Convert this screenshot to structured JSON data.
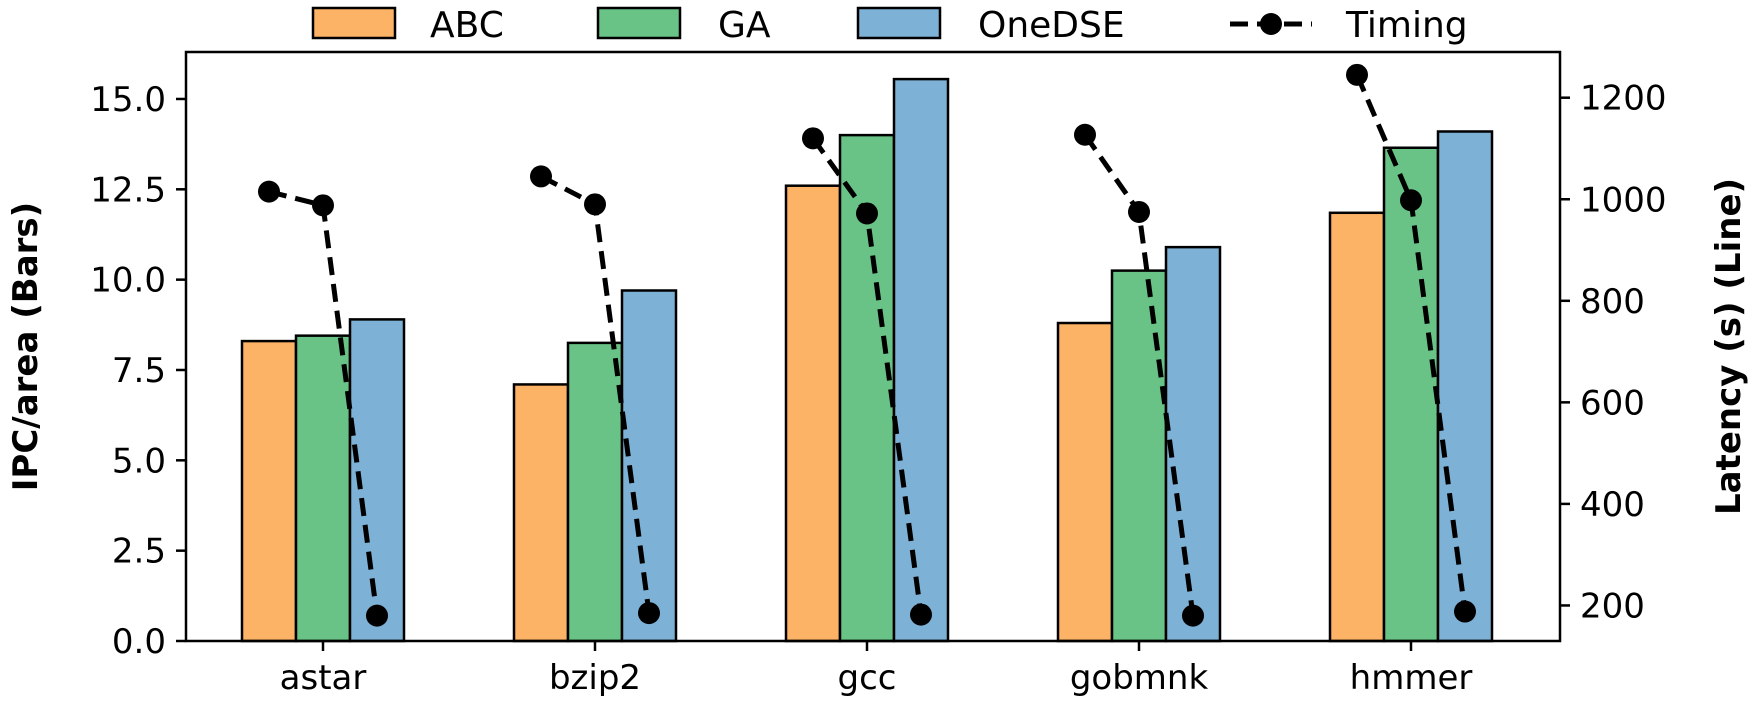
{
  "chart_data": {
    "type": "bar",
    "categories": [
      "astar",
      "bzip2",
      "gcc",
      "gobmnk",
      "hmmer"
    ],
    "series": [
      {
        "name": "ABC",
        "values": [
          8.3,
          7.1,
          12.6,
          8.8,
          11.85
        ],
        "color": "#FDB366"
      },
      {
        "name": "GA",
        "values": [
          8.45,
          8.25,
          14.0,
          10.25,
          13.65
        ],
        "color": "#69C386"
      },
      {
        "name": "OneDSE",
        "values": [
          8.9,
          9.7,
          15.55,
          10.9,
          14.1
        ],
        "color": "#7EB1D6"
      }
    ],
    "line_series": {
      "name": "Timing",
      "axis": "right",
      "color": "#000000",
      "values": [
        [
          1015,
          988,
          180
        ],
        [
          1045,
          990,
          185
        ],
        [
          1120,
          972,
          182
        ],
        [
          1127,
          975,
          180
        ],
        [
          1245,
          998,
          188
        ]
      ]
    },
    "ylabel": "IPC/area (Bars)",
    "ylabel_right": "Latency (s) (Line)",
    "ylim": [
      0,
      16.3
    ],
    "ylim_right": [
      130,
      1290
    ],
    "yticks": [
      "0.0",
      "2.5",
      "5.0",
      "7.5",
      "10.0",
      "12.5",
      "15.0"
    ],
    "yticks_right": [
      "200",
      "400",
      "600",
      "800",
      "1000",
      "1200"
    ],
    "legend": [
      "ABC",
      "GA",
      "OneDSE",
      "Timing"
    ],
    "legend_position": "top-center"
  }
}
